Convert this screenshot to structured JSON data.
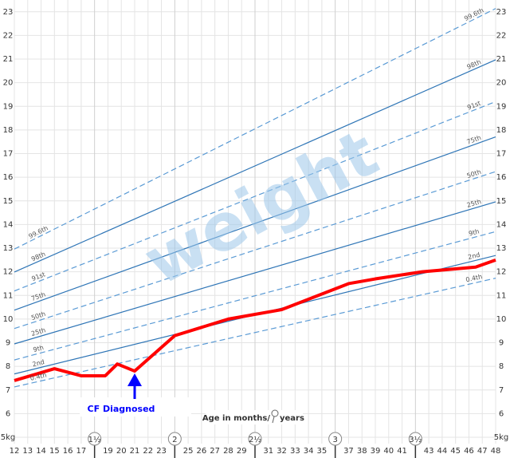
{
  "chart_data": {
    "type": "line",
    "xlim": [
      12,
      48
    ],
    "ylim": [
      5,
      23.5
    ],
    "xticks": [
      12,
      13,
      14,
      15,
      16,
      17,
      19,
      20,
      21,
      22,
      23,
      25,
      26,
      27,
      28,
      29,
      31,
      32,
      33,
      34,
      35,
      37,
      38,
      39,
      40,
      41,
      43,
      44,
      45,
      46,
      47,
      48
    ],
    "year_ticks": [
      {
        "value": 18,
        "label": "1½"
      },
      {
        "value": 24,
        "label": "2"
      },
      {
        "value": 30,
        "label": "2½"
      },
      {
        "value": 36,
        "label": "3"
      },
      {
        "value": 42,
        "label": "3½"
      }
    ],
    "yticks": [
      {
        "value": 5,
        "label": "5kg"
      },
      6,
      7,
      8,
      9,
      10,
      11,
      12,
      13,
      14,
      15,
      16,
      17,
      18,
      19,
      20,
      21,
      22,
      23
    ],
    "xlabel_months": "Age in months/",
    "xlabel_years": "years",
    "watermark": "weight",
    "annotation": "CF Diagnosed",
    "annotation_x": 21,
    "annotation_color": "#0000ff",
    "grid": true,
    "centiles": [
      {
        "name": "99.6th",
        "color": "#5b9bd5",
        "dashed": true,
        "x": [
          12,
          48
        ],
        "values": [
          12.96,
          23.14
        ]
      },
      {
        "name": "98th",
        "color": "#2e75b6",
        "dashed": false,
        "x": [
          12,
          48
        ],
        "values": [
          11.99,
          20.97
        ]
      },
      {
        "name": "91st",
        "color": "#5b9bd5",
        "dashed": true,
        "x": [
          12,
          48
        ],
        "values": [
          11.19,
          19.2
        ]
      },
      {
        "name": "75th",
        "color": "#2e75b6",
        "dashed": false,
        "x": [
          12,
          48
        ],
        "values": [
          10.38,
          17.71
        ]
      },
      {
        "name": "50th",
        "color": "#5b9bd5",
        "dashed": true,
        "x": [
          12,
          48
        ],
        "values": [
          9.6,
          16.24
        ]
      },
      {
        "name": "25th",
        "color": "#2e75b6",
        "dashed": false,
        "x": [
          12,
          48
        ],
        "values": [
          8.95,
          14.96
        ]
      },
      {
        "name": "9th",
        "color": "#5b9bd5",
        "dashed": true,
        "x": [
          12,
          48
        ],
        "values": [
          8.27,
          13.7
        ]
      },
      {
        "name": "2nd",
        "color": "#2e75b6",
        "dashed": false,
        "x": [
          12,
          48
        ],
        "values": [
          7.68,
          12.69
        ]
      },
      {
        "name": "0.4th",
        "color": "#5b9bd5",
        "dashed": true,
        "x": [
          12,
          48
        ],
        "values": [
          7.13,
          11.73
        ]
      }
    ],
    "series": [
      {
        "color": "#ff0000",
        "x": [
          12,
          15,
          17,
          18.8,
          19.7,
          21,
          24,
          28,
          32,
          37,
          39,
          42.5,
          46.5,
          48
        ],
        "values": [
          7.4,
          7.9,
          7.6,
          7.6,
          8.1,
          7.8,
          9.3,
          10.0,
          10.4,
          11.5,
          11.7,
          12.0,
          12.2,
          12.5
        ]
      }
    ]
  }
}
